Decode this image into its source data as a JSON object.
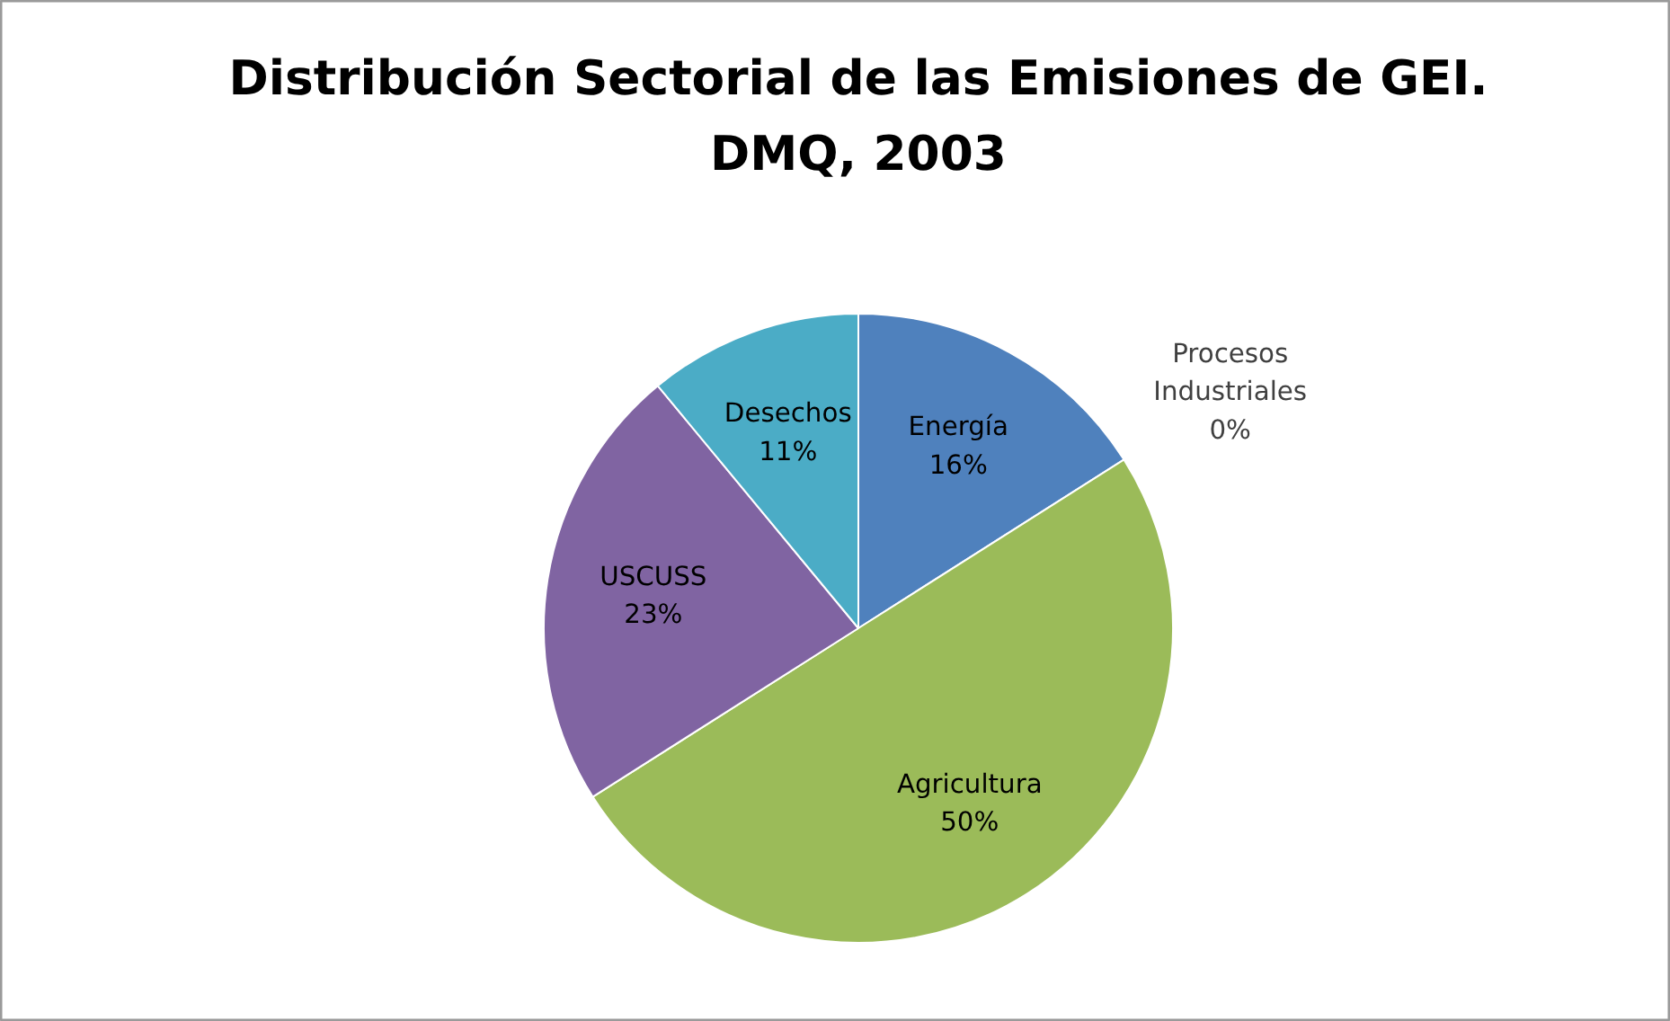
{
  "chart_data": {
    "type": "pie",
    "title": "Distribución Sectorial de las Emisiones de GEI.\nDMQ, 2003",
    "categories": [
      "Energía",
      "Procesos Industriales",
      "Agricultura",
      "USCUSS",
      "Desechos"
    ],
    "values": [
      16,
      0,
      50,
      23,
      11
    ],
    "colors": [
      "#4f81bd",
      "#c0504d",
      "#9bbb59",
      "#8064a2",
      "#4bacc6"
    ],
    "value_labels": [
      "16%",
      "0%",
      "50%",
      "23%",
      "11%"
    ]
  }
}
